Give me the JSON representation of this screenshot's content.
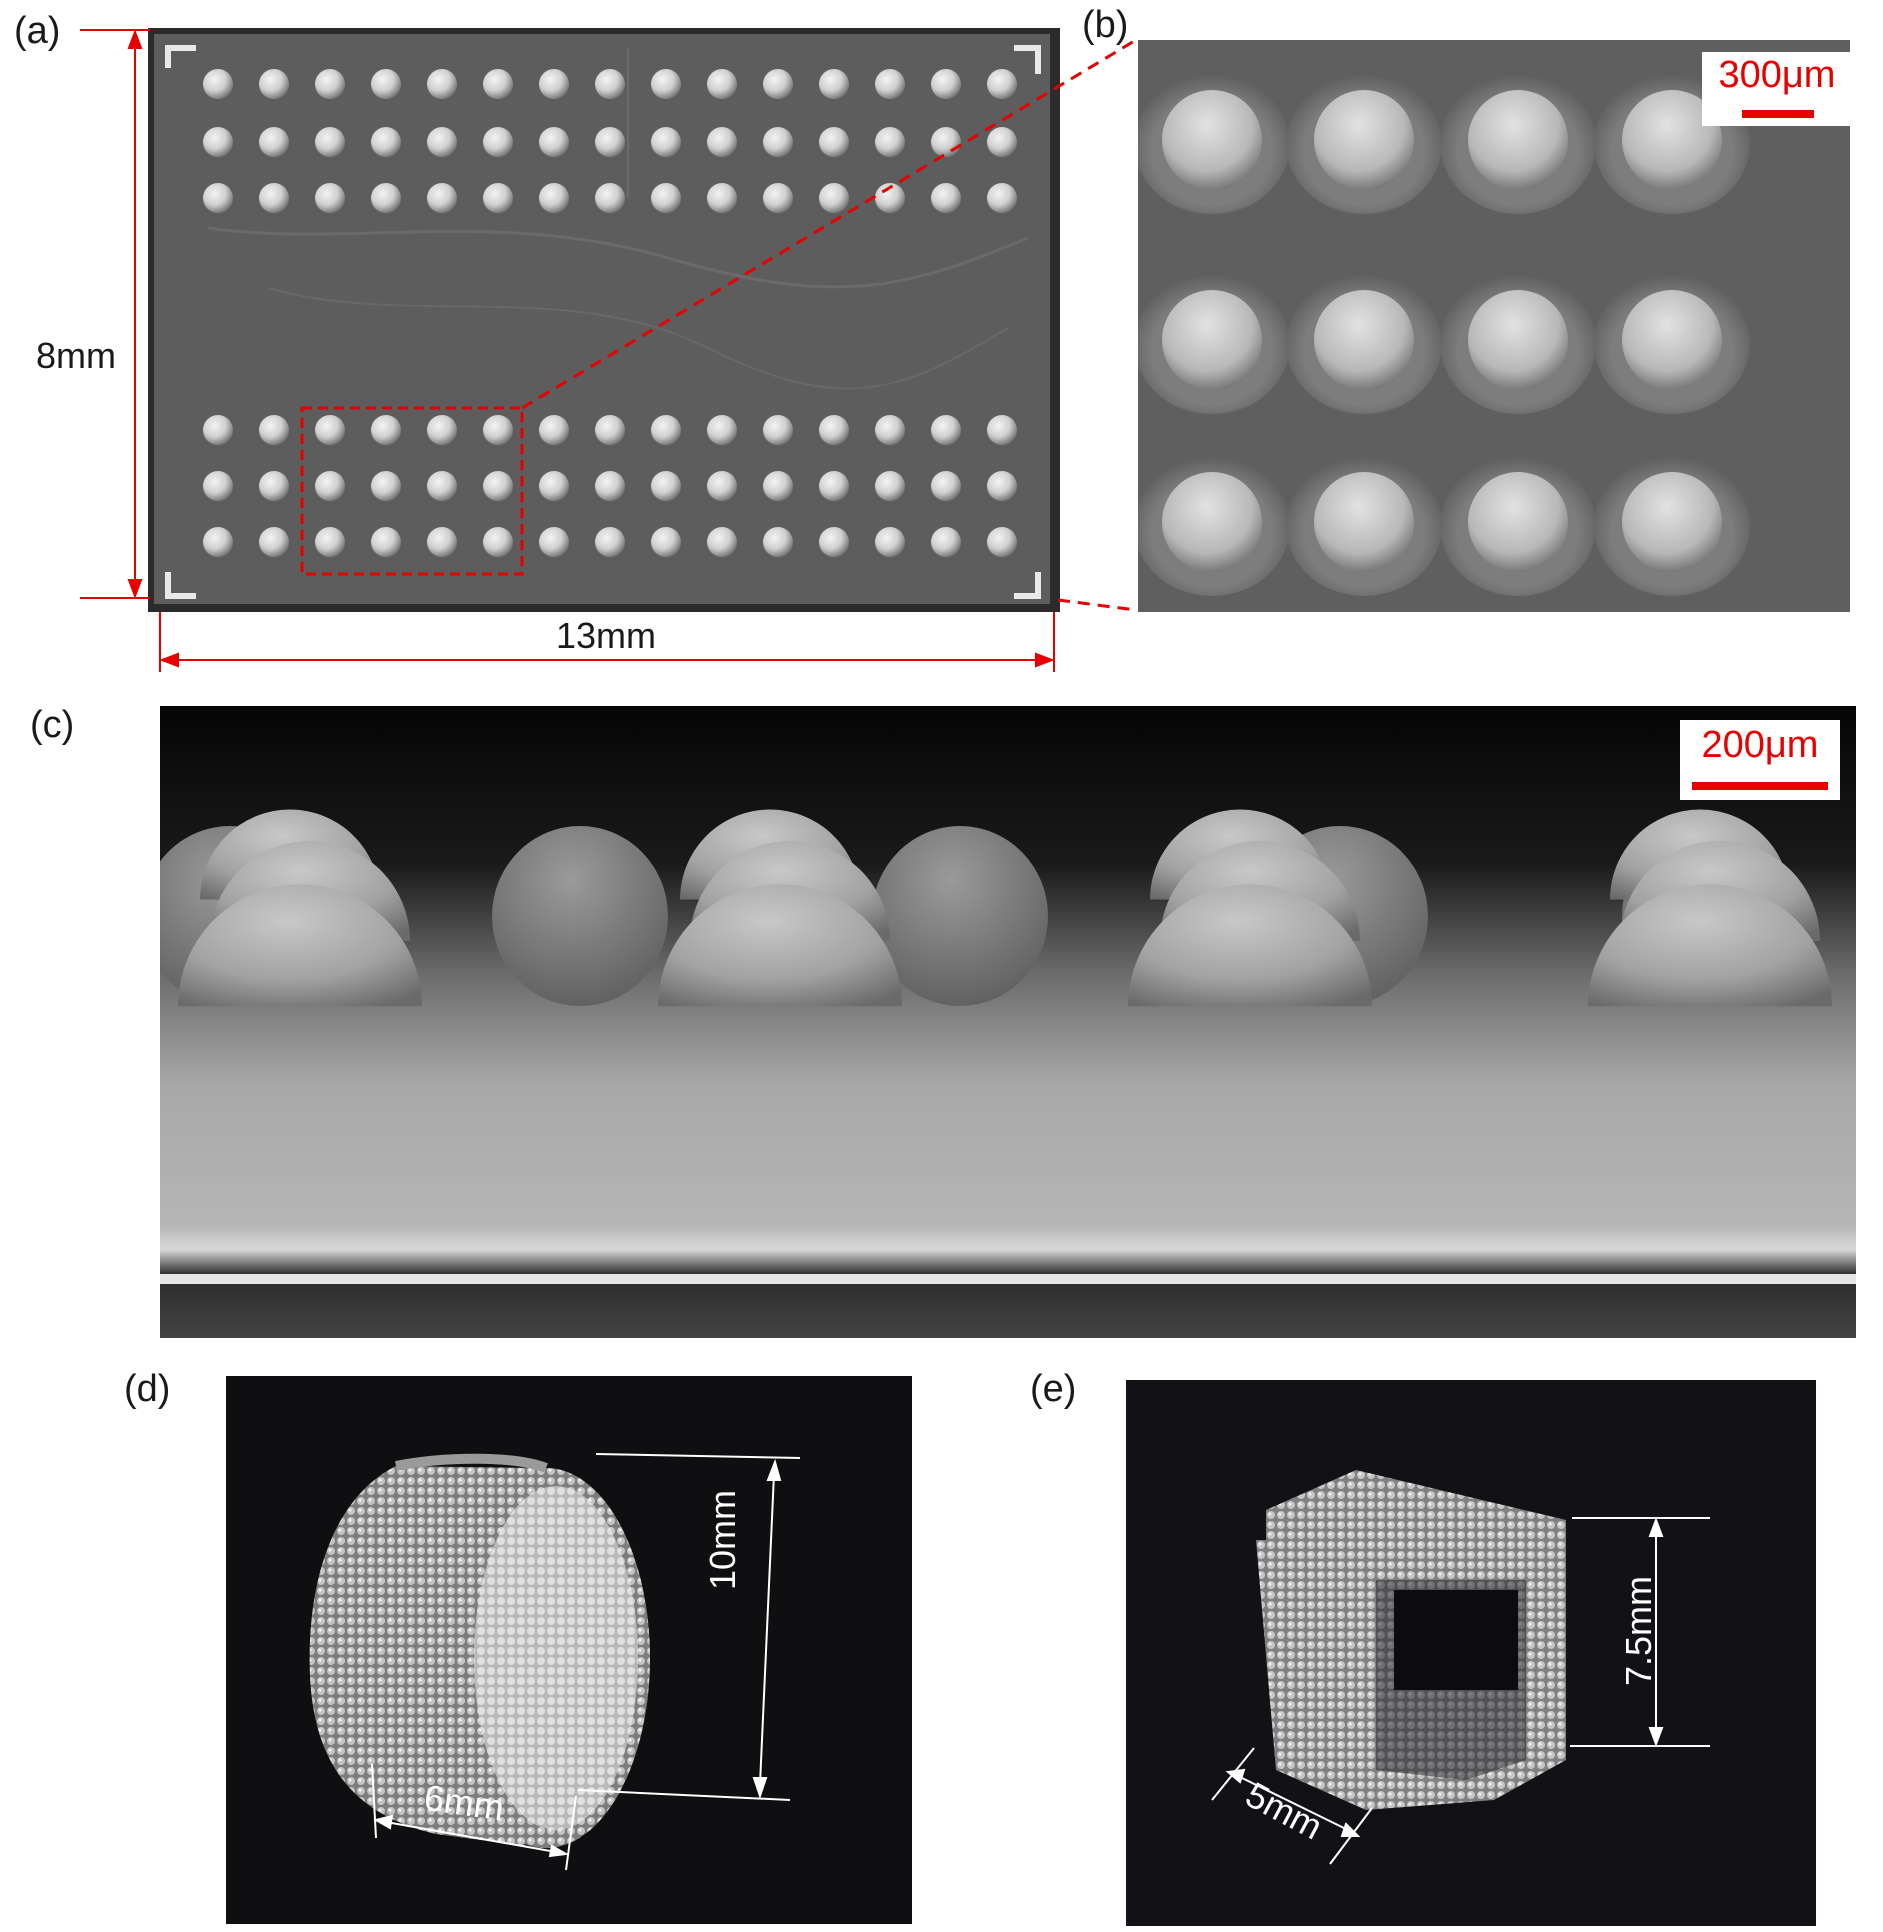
{
  "panels": {
    "a": {
      "label": "(a)",
      "height": "8mm",
      "width": "13mm"
    },
    "b": {
      "label": "(b)",
      "scale": "300μm"
    },
    "c": {
      "label": "(c)",
      "scale": "200μm"
    },
    "d": {
      "label": "(d)",
      "height": "10mm",
      "width": "6mm"
    },
    "e": {
      "label": "(e)",
      "height": "7.5mm",
      "width": "5mm"
    }
  },
  "colors": {
    "annotation": "#e60000",
    "white_annotation": "#ffffff"
  }
}
